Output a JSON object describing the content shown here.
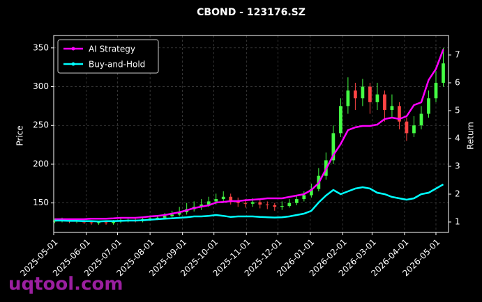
{
  "chart_data": {
    "type": "candlestick",
    "title": "CBOND - 123176.SZ",
    "y_label": "Price",
    "y2_label": "Return",
    "watermark": "uqtool.com",
    "x": [
      "2025-05-02",
      "2025-05-09",
      "2025-05-16",
      "2025-05-23",
      "2025-05-30",
      "2025-06-06",
      "2025-06-13",
      "2025-06-20",
      "2025-06-27",
      "2025-07-04",
      "2025-07-11",
      "2025-07-18",
      "2025-07-25",
      "2025-08-01",
      "2025-08-08",
      "2025-08-15",
      "2025-08-22",
      "2025-08-29",
      "2025-09-05",
      "2025-09-12",
      "2025-09-19",
      "2025-09-26",
      "2025-10-03",
      "2025-10-10",
      "2025-10-17",
      "2025-10-24",
      "2025-10-31",
      "2025-11-07",
      "2025-11-14",
      "2025-11-21",
      "2025-11-28",
      "2025-12-05",
      "2025-12-12",
      "2025-12-19",
      "2025-12-26",
      "2026-01-02",
      "2026-01-09",
      "2026-01-16",
      "2026-01-23",
      "2026-01-30",
      "2026-02-06",
      "2026-02-13",
      "2026-02-20",
      "2026-02-27",
      "2026-03-06",
      "2026-03-13",
      "2026-03-20",
      "2026-03-27",
      "2026-04-03",
      "2026-04-10",
      "2026-04-17",
      "2026-04-24",
      "2026-05-01",
      "2026-05-08"
    ],
    "open": [
      126,
      127,
      128,
      126,
      127,
      125,
      124,
      125,
      124,
      126,
      127,
      128,
      127,
      129,
      130,
      131,
      133,
      135,
      138,
      142,
      145,
      148,
      152,
      155,
      158,
      153,
      150,
      149,
      151,
      148,
      147,
      145,
      146,
      150,
      155,
      160,
      168,
      185,
      205,
      240,
      275,
      295,
      285,
      300,
      280,
      290,
      270,
      275,
      255,
      240,
      250,
      265,
      285,
      305
    ],
    "high": [
      130,
      131,
      130,
      129,
      128,
      127,
      127,
      127,
      128,
      130,
      131,
      130,
      132,
      133,
      134,
      137,
      140,
      145,
      150,
      152,
      155,
      158,
      162,
      165,
      162,
      157,
      155,
      156,
      154,
      152,
      150,
      152,
      155,
      160,
      165,
      175,
      195,
      215,
      250,
      285,
      312,
      305,
      310,
      305,
      305,
      295,
      290,
      280,
      260,
      262,
      275,
      295,
      320,
      350
    ],
    "low": [
      124,
      125,
      124,
      124,
      123,
      122,
      122,
      122,
      122,
      124,
      125,
      125,
      125,
      127,
      128,
      129,
      131,
      133,
      135,
      139,
      141,
      145,
      148,
      150,
      148,
      145,
      144,
      145,
      143,
      142,
      140,
      141,
      144,
      147,
      152,
      157,
      165,
      180,
      200,
      235,
      265,
      270,
      275,
      265,
      270,
      255,
      260,
      245,
      230,
      235,
      245,
      260,
      280,
      300
    ],
    "close": [
      127,
      128,
      126,
      127,
      125,
      124,
      125,
      124,
      126,
      127,
      128,
      127,
      129,
      130,
      131,
      133,
      135,
      138,
      142,
      145,
      148,
      152,
      155,
      158,
      153,
      150,
      149,
      151,
      148,
      147,
      145,
      146,
      150,
      155,
      160,
      168,
      185,
      205,
      240,
      275,
      295,
      285,
      300,
      280,
      290,
      270,
      275,
      255,
      240,
      250,
      265,
      285,
      305,
      330
    ],
    "up_color": "#44ff44",
    "down_color": "#ff4444",
    "series": [
      {
        "name": "AI Strategy",
        "color": "#ff00ff",
        "axis": "y2",
        "values": [
          1.1,
          1.1,
          1.1,
          1.1,
          1.1,
          1.12,
          1.12,
          1.12,
          1.13,
          1.15,
          1.15,
          1.15,
          1.17,
          1.2,
          1.22,
          1.25,
          1.3,
          1.35,
          1.42,
          1.5,
          1.55,
          1.6,
          1.7,
          1.72,
          1.75,
          1.75,
          1.78,
          1.8,
          1.82,
          1.85,
          1.85,
          1.85,
          1.9,
          1.95,
          2.0,
          2.15,
          2.4,
          2.9,
          3.4,
          3.8,
          4.3,
          4.4,
          4.45,
          4.45,
          4.5,
          4.7,
          4.75,
          4.7,
          4.8,
          5.2,
          5.3,
          6.1,
          6.5,
          7.2
        ]
      },
      {
        "name": "Buy-and-Hold",
        "color": "#00ffff",
        "axis": "y2",
        "values": [
          1.05,
          1.05,
          1.04,
          1.04,
          1.03,
          1.03,
          1.02,
          1.03,
          1.03,
          1.04,
          1.05,
          1.05,
          1.06,
          1.08,
          1.1,
          1.12,
          1.13,
          1.15,
          1.17,
          1.2,
          1.2,
          1.22,
          1.25,
          1.22,
          1.18,
          1.2,
          1.2,
          1.2,
          1.18,
          1.17,
          1.16,
          1.17,
          1.2,
          1.25,
          1.3,
          1.4,
          1.7,
          1.95,
          2.15,
          2.0,
          2.1,
          2.2,
          2.25,
          2.2,
          2.05,
          2.0,
          1.9,
          1.85,
          1.8,
          1.85,
          2.0,
          2.05,
          2.2,
          2.35
        ]
      }
    ],
    "xlim": [
      "2025-05-01",
      "2026-05-13"
    ],
    "xticks": [
      "2025-05-01",
      "2025-06-01",
      "2025-07-01",
      "2025-08-01",
      "2025-09-01",
      "2025-10-01",
      "2025-11-01",
      "2025-12-01",
      "2026-01-01",
      "2026-02-01",
      "2026-03-01",
      "2026-04-01",
      "2026-05-01"
    ],
    "ylim": [
      112,
      366
    ],
    "yticks": [
      150,
      200,
      250,
      300,
      350
    ],
    "y2lim": [
      0.625,
      7.7
    ],
    "y2ticks": [
      1,
      2,
      3,
      4,
      5,
      6,
      7
    ],
    "grid": true,
    "legend": "upper left"
  }
}
